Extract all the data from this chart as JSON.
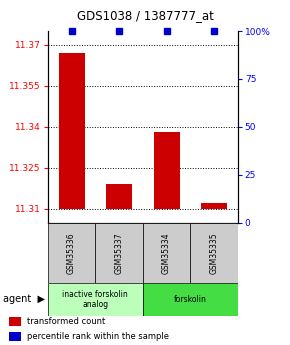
{
  "title": "GDS1038 / 1387777_at",
  "samples": [
    "GSM35336",
    "GSM35337",
    "GSM35334",
    "GSM35335"
  ],
  "bar_values": [
    11.367,
    11.319,
    11.338,
    11.312
  ],
  "percentile_values": [
    100,
    100,
    100,
    100
  ],
  "ylim_left": [
    11.305,
    11.375
  ],
  "ylim_right": [
    0,
    100
  ],
  "yticks_left": [
    11.31,
    11.325,
    11.34,
    11.355,
    11.37
  ],
  "yticks_right": [
    0,
    25,
    50,
    75,
    100
  ],
  "bar_color": "#cc0000",
  "percentile_color": "#0000cc",
  "bar_bottom": 11.31,
  "groups": [
    {
      "label": "inactive forskolin\nanalog",
      "color": "#bbffbb",
      "cols": [
        0,
        1
      ]
    },
    {
      "label": "forskolin",
      "color": "#44dd44",
      "cols": [
        2,
        3
      ]
    }
  ],
  "agent_label": "agent",
  "legend_items": [
    {
      "color": "#cc0000",
      "label": "transformed count"
    },
    {
      "color": "#0000cc",
      "label": "percentile rank within the sample"
    }
  ],
  "background_color": "#ffffff",
  "sample_box_color": "#cccccc"
}
